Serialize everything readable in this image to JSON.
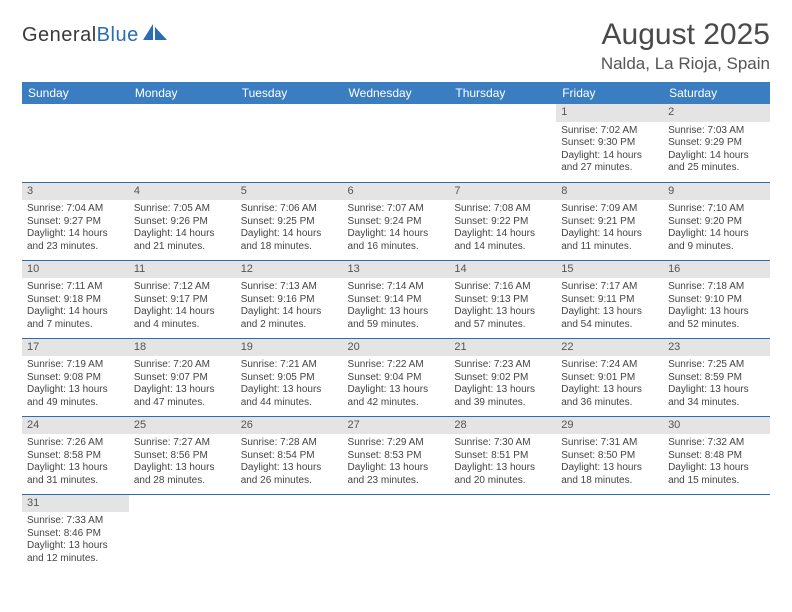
{
  "brand": {
    "part1": "General",
    "part2": "Blue"
  },
  "title": "August 2025",
  "location": "Nalda, La Rioja, Spain",
  "colors": {
    "header_bg": "#3a7ec1",
    "header_fg": "#ffffff",
    "daynum_bg": "#e4e4e4",
    "rule": "#2a6db3",
    "brand_blue": "#2a6db3",
    "text": "#444444"
  },
  "weekdays": [
    "Sunday",
    "Monday",
    "Tuesday",
    "Wednesday",
    "Thursday",
    "Friday",
    "Saturday"
  ],
  "weeks": [
    [
      null,
      null,
      null,
      null,
      null,
      {
        "n": "1",
        "sr": "Sunrise: 7:02 AM",
        "ss": "Sunset: 9:30 PM",
        "d1": "Daylight: 14 hours",
        "d2": "and 27 minutes."
      },
      {
        "n": "2",
        "sr": "Sunrise: 7:03 AM",
        "ss": "Sunset: 9:29 PM",
        "d1": "Daylight: 14 hours",
        "d2": "and 25 minutes."
      }
    ],
    [
      {
        "n": "3",
        "sr": "Sunrise: 7:04 AM",
        "ss": "Sunset: 9:27 PM",
        "d1": "Daylight: 14 hours",
        "d2": "and 23 minutes."
      },
      {
        "n": "4",
        "sr": "Sunrise: 7:05 AM",
        "ss": "Sunset: 9:26 PM",
        "d1": "Daylight: 14 hours",
        "d2": "and 21 minutes."
      },
      {
        "n": "5",
        "sr": "Sunrise: 7:06 AM",
        "ss": "Sunset: 9:25 PM",
        "d1": "Daylight: 14 hours",
        "d2": "and 18 minutes."
      },
      {
        "n": "6",
        "sr": "Sunrise: 7:07 AM",
        "ss": "Sunset: 9:24 PM",
        "d1": "Daylight: 14 hours",
        "d2": "and 16 minutes."
      },
      {
        "n": "7",
        "sr": "Sunrise: 7:08 AM",
        "ss": "Sunset: 9:22 PM",
        "d1": "Daylight: 14 hours",
        "d2": "and 14 minutes."
      },
      {
        "n": "8",
        "sr": "Sunrise: 7:09 AM",
        "ss": "Sunset: 9:21 PM",
        "d1": "Daylight: 14 hours",
        "d2": "and 11 minutes."
      },
      {
        "n": "9",
        "sr": "Sunrise: 7:10 AM",
        "ss": "Sunset: 9:20 PM",
        "d1": "Daylight: 14 hours",
        "d2": "and 9 minutes."
      }
    ],
    [
      {
        "n": "10",
        "sr": "Sunrise: 7:11 AM",
        "ss": "Sunset: 9:18 PM",
        "d1": "Daylight: 14 hours",
        "d2": "and 7 minutes."
      },
      {
        "n": "11",
        "sr": "Sunrise: 7:12 AM",
        "ss": "Sunset: 9:17 PM",
        "d1": "Daylight: 14 hours",
        "d2": "and 4 minutes."
      },
      {
        "n": "12",
        "sr": "Sunrise: 7:13 AM",
        "ss": "Sunset: 9:16 PM",
        "d1": "Daylight: 14 hours",
        "d2": "and 2 minutes."
      },
      {
        "n": "13",
        "sr": "Sunrise: 7:14 AM",
        "ss": "Sunset: 9:14 PM",
        "d1": "Daylight: 13 hours",
        "d2": "and 59 minutes."
      },
      {
        "n": "14",
        "sr": "Sunrise: 7:16 AM",
        "ss": "Sunset: 9:13 PM",
        "d1": "Daylight: 13 hours",
        "d2": "and 57 minutes."
      },
      {
        "n": "15",
        "sr": "Sunrise: 7:17 AM",
        "ss": "Sunset: 9:11 PM",
        "d1": "Daylight: 13 hours",
        "d2": "and 54 minutes."
      },
      {
        "n": "16",
        "sr": "Sunrise: 7:18 AM",
        "ss": "Sunset: 9:10 PM",
        "d1": "Daylight: 13 hours",
        "d2": "and 52 minutes."
      }
    ],
    [
      {
        "n": "17",
        "sr": "Sunrise: 7:19 AM",
        "ss": "Sunset: 9:08 PM",
        "d1": "Daylight: 13 hours",
        "d2": "and 49 minutes."
      },
      {
        "n": "18",
        "sr": "Sunrise: 7:20 AM",
        "ss": "Sunset: 9:07 PM",
        "d1": "Daylight: 13 hours",
        "d2": "and 47 minutes."
      },
      {
        "n": "19",
        "sr": "Sunrise: 7:21 AM",
        "ss": "Sunset: 9:05 PM",
        "d1": "Daylight: 13 hours",
        "d2": "and 44 minutes."
      },
      {
        "n": "20",
        "sr": "Sunrise: 7:22 AM",
        "ss": "Sunset: 9:04 PM",
        "d1": "Daylight: 13 hours",
        "d2": "and 42 minutes."
      },
      {
        "n": "21",
        "sr": "Sunrise: 7:23 AM",
        "ss": "Sunset: 9:02 PM",
        "d1": "Daylight: 13 hours",
        "d2": "and 39 minutes."
      },
      {
        "n": "22",
        "sr": "Sunrise: 7:24 AM",
        "ss": "Sunset: 9:01 PM",
        "d1": "Daylight: 13 hours",
        "d2": "and 36 minutes."
      },
      {
        "n": "23",
        "sr": "Sunrise: 7:25 AM",
        "ss": "Sunset: 8:59 PM",
        "d1": "Daylight: 13 hours",
        "d2": "and 34 minutes."
      }
    ],
    [
      {
        "n": "24",
        "sr": "Sunrise: 7:26 AM",
        "ss": "Sunset: 8:58 PM",
        "d1": "Daylight: 13 hours",
        "d2": "and 31 minutes."
      },
      {
        "n": "25",
        "sr": "Sunrise: 7:27 AM",
        "ss": "Sunset: 8:56 PM",
        "d1": "Daylight: 13 hours",
        "d2": "and 28 minutes."
      },
      {
        "n": "26",
        "sr": "Sunrise: 7:28 AM",
        "ss": "Sunset: 8:54 PM",
        "d1": "Daylight: 13 hours",
        "d2": "and 26 minutes."
      },
      {
        "n": "27",
        "sr": "Sunrise: 7:29 AM",
        "ss": "Sunset: 8:53 PM",
        "d1": "Daylight: 13 hours",
        "d2": "and 23 minutes."
      },
      {
        "n": "28",
        "sr": "Sunrise: 7:30 AM",
        "ss": "Sunset: 8:51 PM",
        "d1": "Daylight: 13 hours",
        "d2": "and 20 minutes."
      },
      {
        "n": "29",
        "sr": "Sunrise: 7:31 AM",
        "ss": "Sunset: 8:50 PM",
        "d1": "Daylight: 13 hours",
        "d2": "and 18 minutes."
      },
      {
        "n": "30",
        "sr": "Sunrise: 7:32 AM",
        "ss": "Sunset: 8:48 PM",
        "d1": "Daylight: 13 hours",
        "d2": "and 15 minutes."
      }
    ],
    [
      {
        "n": "31",
        "sr": "Sunrise: 7:33 AM",
        "ss": "Sunset: 8:46 PM",
        "d1": "Daylight: 13 hours",
        "d2": "and 12 minutes."
      },
      null,
      null,
      null,
      null,
      null,
      null
    ]
  ]
}
